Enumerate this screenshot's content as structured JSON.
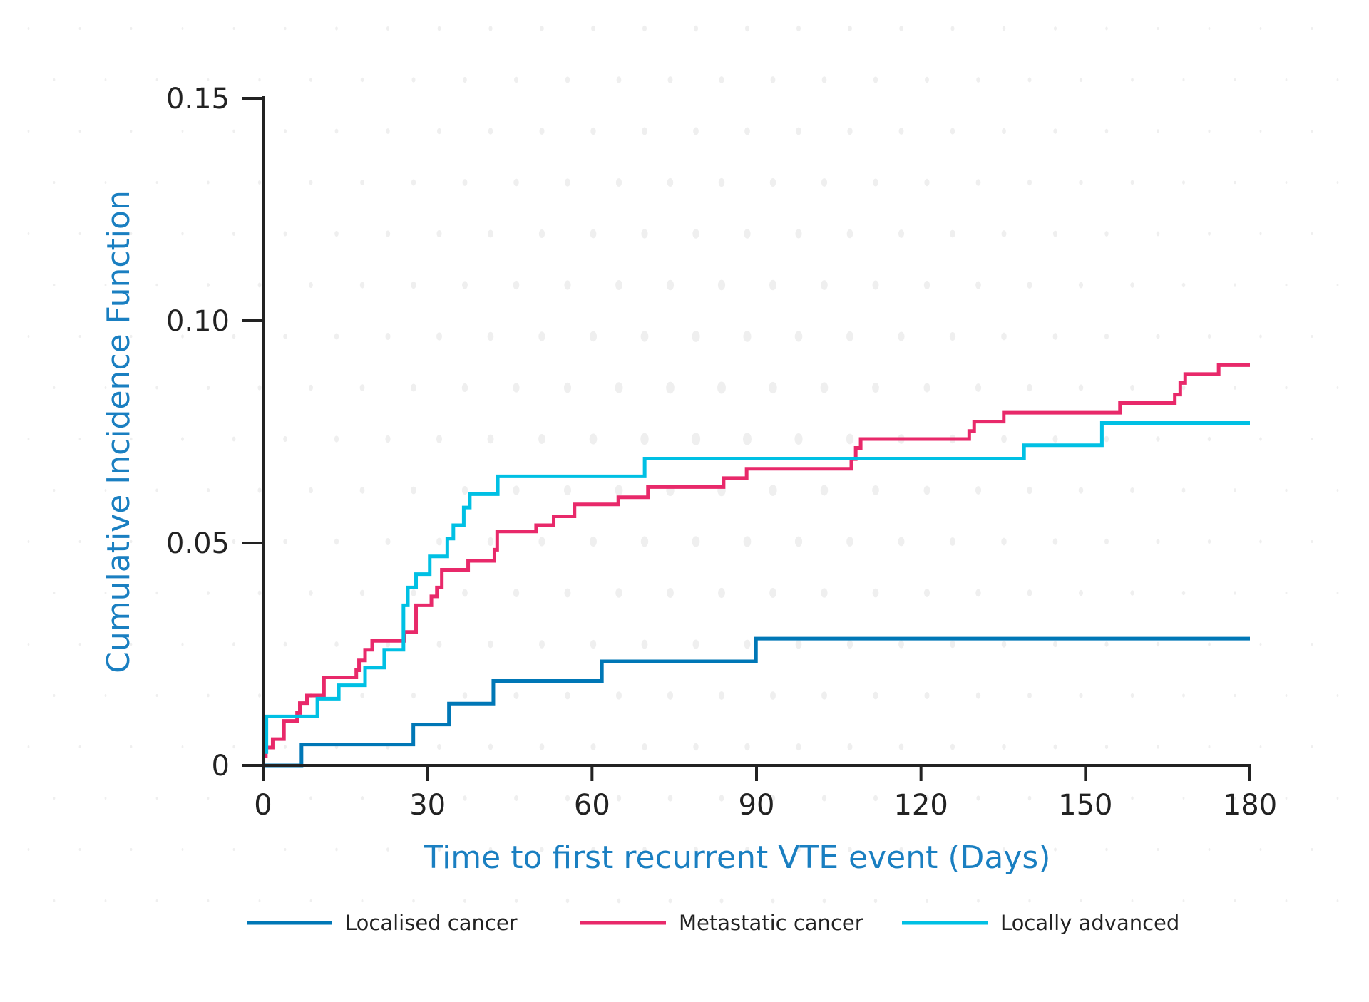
{
  "chart_data": {
    "type": "line",
    "step": true,
    "xlabel": "Time to first recurrent VTE event (Days)",
    "ylabel": "Cumulative Incidence Function",
    "xlim": [
      0,
      180
    ],
    "ylim": [
      0,
      0.15
    ],
    "xticks": [
      "0",
      "30",
      "60",
      "90",
      "120",
      "150",
      "180"
    ],
    "yticks": [
      "0",
      "0.05",
      "0.10",
      "0.15"
    ],
    "grid": false,
    "legend_position": "bottom",
    "series": [
      {
        "name": "Localised cancer",
        "color": "#0077b6",
        "x": [
          0,
          7,
          27.4,
          33.9,
          42,
          61.8,
          89.9,
          180
        ],
        "y": [
          0,
          0.0047,
          0.0092,
          0.0139,
          0.019,
          0.0234,
          0.0285,
          0.0285
        ]
      },
      {
        "name": "Metastatic cancer",
        "color": "#e8296a",
        "x": [
          0,
          0.5,
          1.75,
          3.8,
          6.2,
          6.7,
          8,
          11.1,
          17,
          17.5,
          18.6,
          19.9,
          25.8,
          27.9,
          30.7,
          31.7,
          32.6,
          37.4,
          42.2,
          42.7,
          49.8,
          53,
          56.8,
          64.8,
          70.2,
          84,
          88.2,
          107.3,
          108.1,
          109,
          128.8,
          129.7,
          135.1,
          156.3,
          166.3,
          167.3,
          168.2,
          174.3,
          180
        ],
        "y": [
          0.002,
          0.004,
          0.0059,
          0.01,
          0.0118,
          0.014,
          0.0157,
          0.0198,
          0.0214,
          0.0236,
          0.026,
          0.028,
          0.03,
          0.036,
          0.038,
          0.04,
          0.044,
          0.046,
          0.0485,
          0.0526,
          0.054,
          0.056,
          0.0587,
          0.0603,
          0.0626,
          0.0646,
          0.0667,
          0.0689,
          0.0714,
          0.0734,
          0.0752,
          0.0773,
          0.0793,
          0.0815,
          0.0834,
          0.086,
          0.088,
          0.09,
          0.09
        ]
      },
      {
        "name": "Locally advanced",
        "color": "#00c0e4",
        "x": [
          0,
          0.6,
          9.9,
          13.8,
          18.6,
          22.1,
          25.6,
          26.4,
          27.9,
          30.4,
          33.6,
          34.7,
          36.6,
          37.7,
          42.8,
          69.6,
          138.8,
          153,
          180
        ],
        "y": [
          0.003,
          0.011,
          0.015,
          0.018,
          0.022,
          0.026,
          0.036,
          0.04,
          0.043,
          0.047,
          0.051,
          0.054,
          0.058,
          0.061,
          0.065,
          0.069,
          0.072,
          0.077,
          0.077
        ]
      }
    ]
  }
}
